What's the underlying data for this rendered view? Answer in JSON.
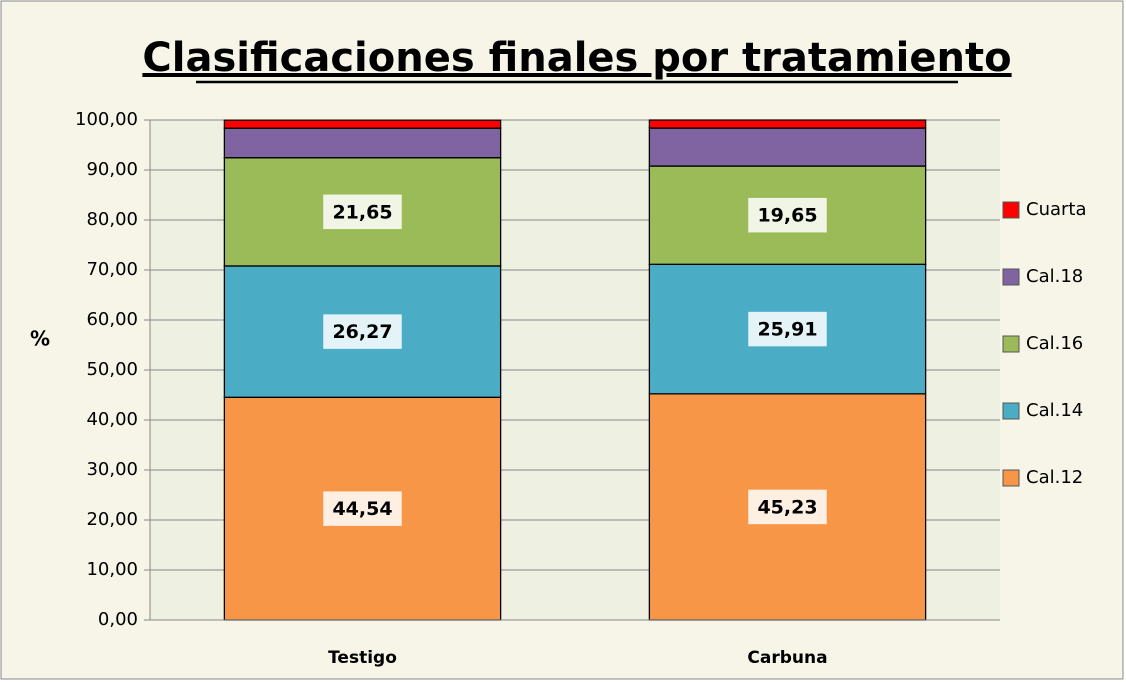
{
  "chart_data": {
    "type": "stacked-bar",
    "title": "Clasificaciones finales por tratamiento",
    "y_label": "%",
    "categories": [
      "Testigo",
      "Carbuna"
    ],
    "series": [
      {
        "name": "Cal.12",
        "color": "#f79646",
        "values": [
          44.54,
          45.23
        ],
        "value_labels": [
          "44,54",
          "45,23"
        ]
      },
      {
        "name": "Cal.14",
        "color": "#4bacc6",
        "values": [
          26.27,
          25.91
        ],
        "value_labels": [
          "26,27",
          "25,91"
        ]
      },
      {
        "name": "Cal.16",
        "color": "#9bbb59",
        "values": [
          21.65,
          19.65
        ],
        "value_labels": [
          "21,65",
          "19,65"
        ]
      },
      {
        "name": "Cal.18",
        "color": "#8064a2",
        "values": [
          5.9,
          7.6
        ]
      },
      {
        "name": "Cuarta",
        "color": "#ff0000",
        "values": [
          1.6,
          1.6
        ]
      }
    ],
    "ylim": [
      0,
      100
    ],
    "yticks": [
      {
        "value": 0,
        "label": "0,00"
      },
      {
        "value": 10,
        "label": "10,00"
      },
      {
        "value": 20,
        "label": "20,00"
      },
      {
        "value": 30,
        "label": "30,00"
      },
      {
        "value": 40,
        "label": "40,00"
      },
      {
        "value": 50,
        "label": "50,00"
      },
      {
        "value": 60,
        "label": "60,00"
      },
      {
        "value": 70,
        "label": "70,00"
      },
      {
        "value": 80,
        "label": "80,00"
      },
      {
        "value": 90,
        "label": "90,00"
      },
      {
        "value": 100,
        "label": "100,00"
      }
    ],
    "grid": true,
    "legend": "right"
  }
}
